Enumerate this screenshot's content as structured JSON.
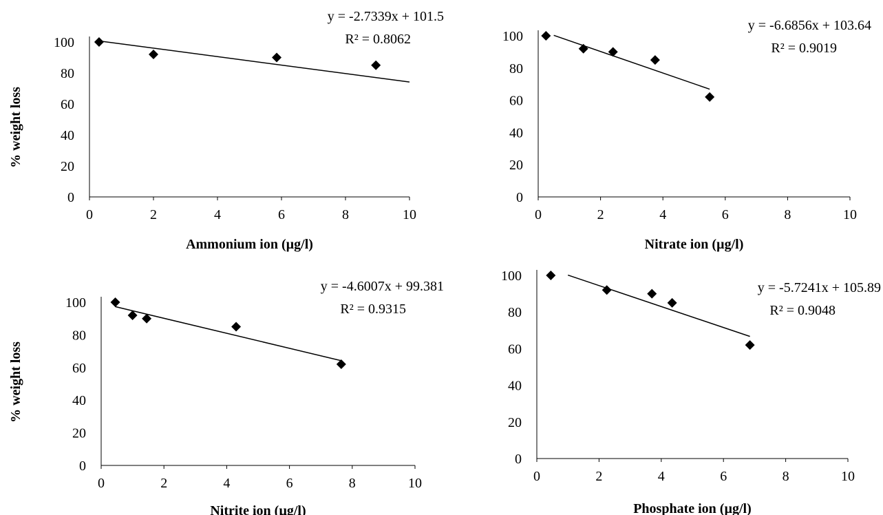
{
  "page": {
    "ylabel": "% weight loss"
  },
  "colors": {
    "marker": "#000000",
    "axis": "#000000",
    "trendline": "#000000"
  },
  "chart_data": [
    {
      "type": "scatter",
      "xlabel": "Ammonium ion (µg/l)",
      "ylabel": "% weight loss",
      "xlim": [
        0,
        10
      ],
      "ylim": [
        0,
        100
      ],
      "xticks": [
        0,
        2,
        4,
        6,
        8,
        10
      ],
      "yticks": [
        0,
        20,
        40,
        60,
        80,
        100
      ],
      "points": [
        {
          "x": 0.3,
          "y": 100
        },
        {
          "x": 2.0,
          "y": 92
        },
        {
          "x": 5.85,
          "y": 90
        },
        {
          "x": 8.95,
          "y": 85
        }
      ],
      "trendline": {
        "slope": -2.7339,
        "intercept": 101.5,
        "x_range": [
          0.3,
          10
        ]
      },
      "equation": "y = -2.7339x + 101.5",
      "r2": "R² = 0.8062",
      "marker": "diamond",
      "grid": false,
      "legend": "none"
    },
    {
      "type": "scatter",
      "xlabel": "Nitrate ion (µg/l)",
      "ylabel": "",
      "xlim": [
        0,
        10
      ],
      "ylim": [
        0,
        100
      ],
      "xticks": [
        0,
        2,
        4,
        6,
        8,
        10
      ],
      "yticks": [
        0,
        20,
        40,
        60,
        80,
        100
      ],
      "points": [
        {
          "x": 0.25,
          "y": 100
        },
        {
          "x": 1.45,
          "y": 92
        },
        {
          "x": 2.4,
          "y": 90
        },
        {
          "x": 3.75,
          "y": 85
        },
        {
          "x": 5.5,
          "y": 62
        }
      ],
      "trendline": {
        "slope": -6.6856,
        "intercept": 103.64,
        "x_range": [
          0.5,
          5.5
        ]
      },
      "equation": "y = -6.6856x + 103.64",
      "r2": "R² = 0.9019",
      "marker": "diamond",
      "grid": false,
      "legend": "none"
    },
    {
      "type": "scatter",
      "xlabel": "Nitrite ion (µg/l)",
      "ylabel": "% weight loss",
      "xlim": [
        0,
        10
      ],
      "ylim": [
        0,
        100
      ],
      "xticks": [
        0,
        2,
        4,
        6,
        8,
        10
      ],
      "yticks": [
        0,
        20,
        40,
        60,
        80,
        100
      ],
      "points": [
        {
          "x": 0.45,
          "y": 100
        },
        {
          "x": 1.0,
          "y": 92
        },
        {
          "x": 1.45,
          "y": 90
        },
        {
          "x": 4.3,
          "y": 85
        },
        {
          "x": 7.65,
          "y": 62
        }
      ],
      "trendline": {
        "slope": -4.6007,
        "intercept": 99.381,
        "x_range": [
          0.45,
          7.65
        ]
      },
      "equation": "y = -4.6007x + 99.381",
      "r2": "R² = 0.9315",
      "marker": "diamond",
      "grid": false,
      "legend": "none"
    },
    {
      "type": "scatter",
      "xlabel": "Phosphate ion (µg/l)",
      "ylabel": "",
      "xlim": [
        0,
        10
      ],
      "ylim": [
        0,
        100
      ],
      "xticks": [
        0,
        2,
        4,
        6,
        8,
        10
      ],
      "yticks": [
        0,
        20,
        40,
        60,
        80,
        100
      ],
      "points": [
        {
          "x": 0.45,
          "y": 100
        },
        {
          "x": 2.25,
          "y": 92
        },
        {
          "x": 3.7,
          "y": 90
        },
        {
          "x": 4.35,
          "y": 85
        },
        {
          "x": 6.85,
          "y": 62
        }
      ],
      "trendline": {
        "slope": -5.7241,
        "intercept": 105.89,
        "x_range": [
          1.0,
          6.85
        ]
      },
      "equation": "y = -5.7241x + 105.89",
      "r2": "R² = 0.9048",
      "marker": "diamond",
      "grid": false,
      "legend": "none"
    }
  ]
}
